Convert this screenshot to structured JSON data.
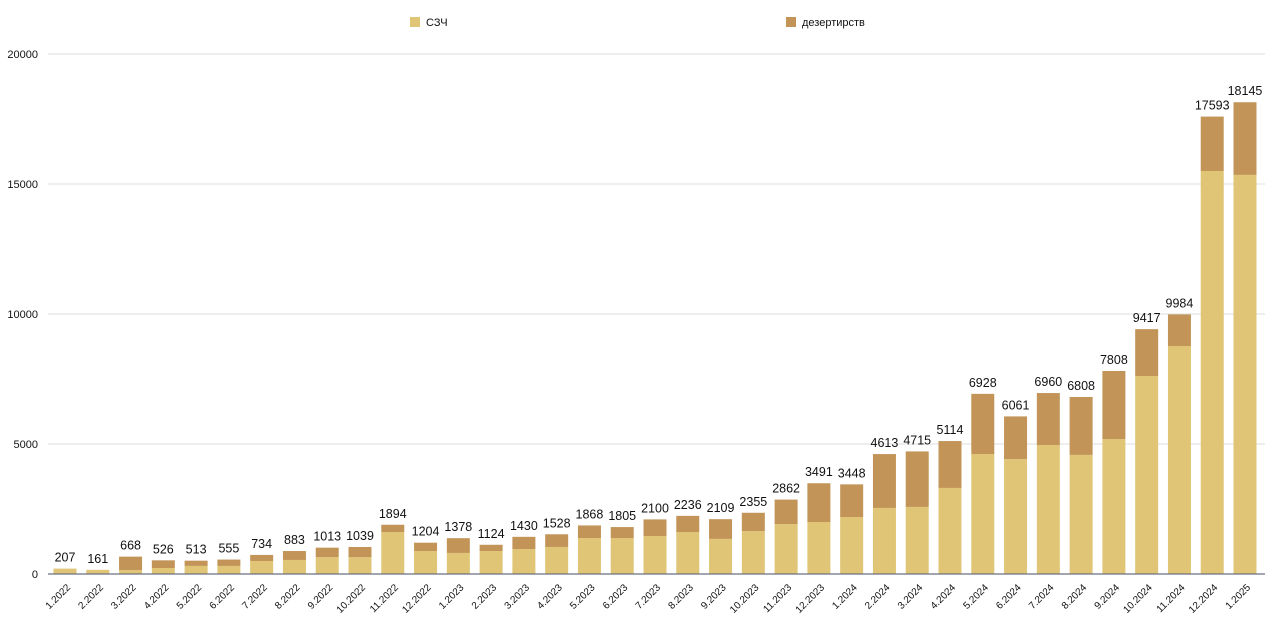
{
  "chart_data": {
    "type": "bar",
    "stacked": true,
    "title": "",
    "xlabel": "",
    "ylabel": "",
    "ylim": [
      0,
      20000
    ],
    "yticks": [
      0,
      5000,
      10000,
      15000,
      20000
    ],
    "grid": true,
    "legend_position": "top",
    "categories": [
      "1.2022",
      "2.2022",
      "3.2022",
      "4.2022",
      "5.2022",
      "6.2022",
      "7.2022",
      "8.2022",
      "9.2022",
      "10.2022",
      "11.2022",
      "12.2022",
      "1.2023",
      "2.2023",
      "3.2023",
      "4.2023",
      "5.2023",
      "6.2023",
      "7.2023",
      "8.2023",
      "9.2023",
      "10.2023",
      "11.2023",
      "12.2023",
      "1.2024",
      "2.2024",
      "3.2024",
      "4.2024",
      "5.2024",
      "6.2024",
      "7.2024",
      "8.2024",
      "9.2024",
      "10.2024",
      "11.2024",
      "12.2024",
      "1.2025"
    ],
    "totals": [
      207,
      161,
      668,
      526,
      513,
      555,
      734,
      883,
      1013,
      1039,
      1894,
      1204,
      1378,
      1124,
      1430,
      1528,
      1868,
      1805,
      2100,
      2236,
      2109,
      2355,
      2862,
      3491,
      3448,
      4613,
      4715,
      5114,
      6928,
      6061,
      6960,
      6808,
      7808,
      9417,
      9984,
      17593,
      18145
    ],
    "series": [
      {
        "name": "СЗЧ",
        "color": "#E0C576",
        "values": [
          207,
          161,
          150,
          230,
          310,
          310,
          500,
          540,
          650,
          650,
          1615,
          885,
          810,
          885,
          960,
          1040,
          1385,
          1385,
          1460,
          1615,
          1350,
          1650,
          1920,
          2000,
          2190,
          2540,
          2580,
          3310,
          4615,
          4420,
          4960,
          4580,
          5190,
          7615,
          8770,
          15500,
          15350
        ]
      },
      {
        "name": "дезертирств",
        "color": "#C29458",
        "values": [
          0,
          0,
          518,
          296,
          203,
          245,
          234,
          343,
          363,
          389,
          279,
          319,
          568,
          239,
          470,
          488,
          483,
          420,
          640,
          621,
          759,
          705,
          942,
          1491,
          1258,
          2073,
          2135,
          1804,
          2313,
          1641,
          2000,
          2228,
          2618,
          1802,
          1214,
          2093,
          2795
        ]
      }
    ]
  }
}
